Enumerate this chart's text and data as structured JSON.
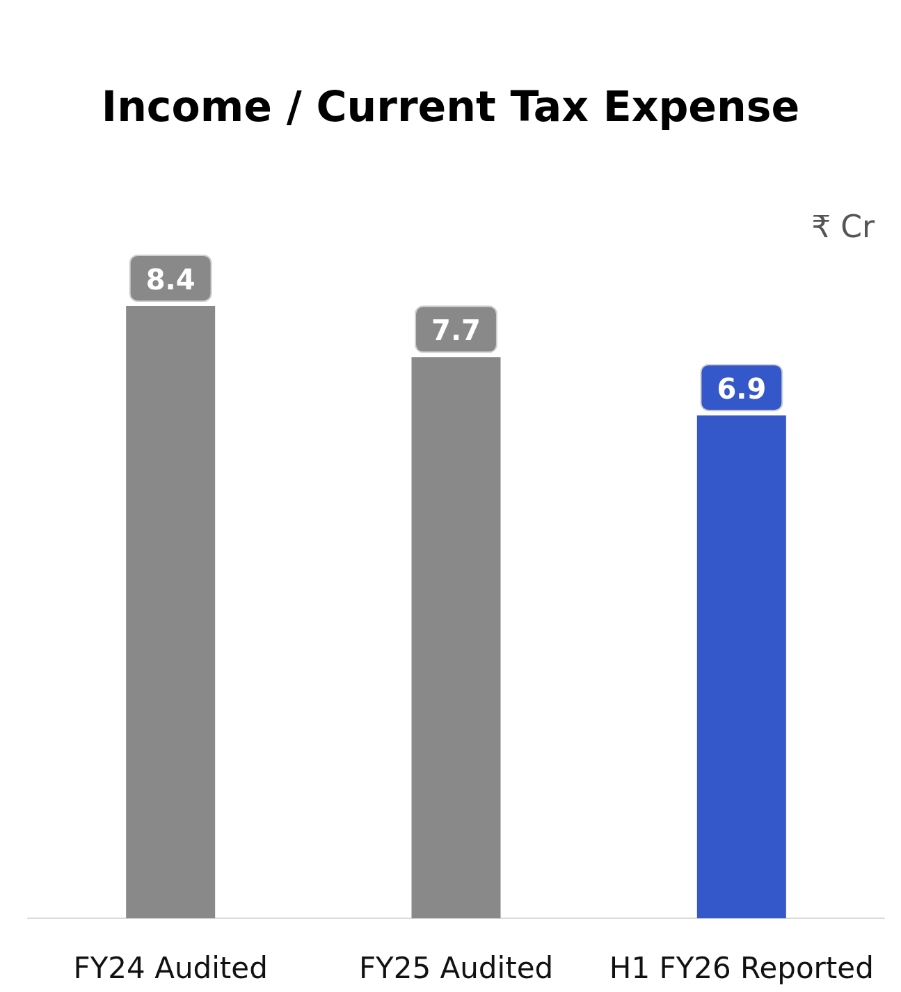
{
  "chart_data": {
    "type": "bar",
    "title": "Income / Current Tax Expense",
    "ylabel": "₹ Cr",
    "categories": [
      "FY24 Audited",
      "FY25 Audited",
      "H1 FY26 Reported"
    ],
    "values": [
      8.4,
      7.7,
      6.9
    ],
    "colors": [
      "#898989",
      "#898989",
      "#3457c9"
    ],
    "data_labels": true
  }
}
